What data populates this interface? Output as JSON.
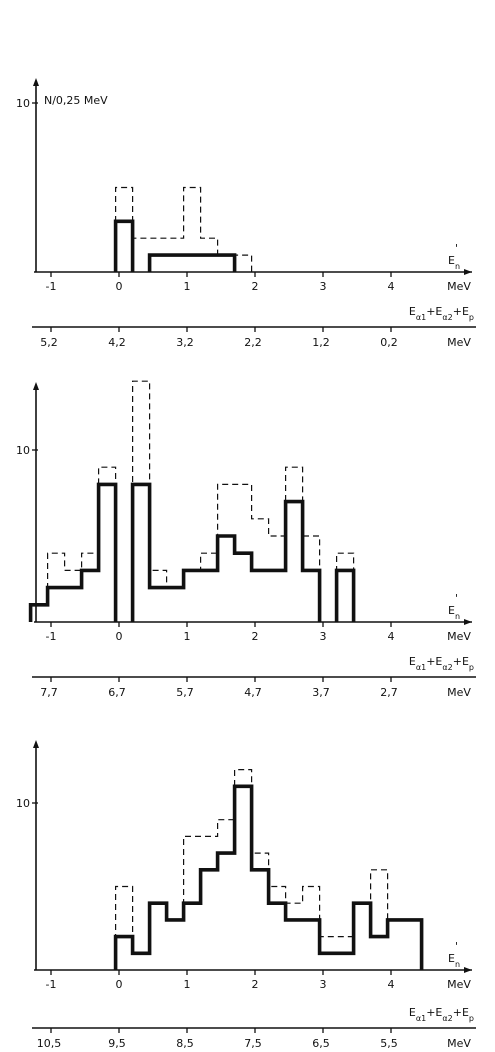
{
  "chart_data": [
    {
      "type": "histogram",
      "ylabel": "N/0,25 MeV",
      "xlabel": "E'n",
      "x_unit": "MeV",
      "xlim": [
        -1.25,
        4.75
      ],
      "ylim": [
        0,
        10
      ],
      "y_ticks": [
        10
      ],
      "x_ticks": [
        -1,
        0,
        1,
        2,
        3,
        4
      ],
      "secondary_axis": {
        "label": "Eα1+Eα2+Ep",
        "unit": "MeV",
        "ticks": [
          "5,2",
          "4,2",
          "3,2",
          "2,2",
          "1,2",
          "0,2"
        ]
      },
      "series": [
        {
          "style": "solid",
          "bins": [
            [
              -0.05,
              0.2,
              3
            ],
            [
              0.45,
              1.7,
              1
            ]
          ]
        },
        {
          "style": "dashed",
          "bins": [
            [
              -0.05,
              0.2,
              5
            ],
            [
              0.2,
              0.95,
              2
            ],
            [
              0.95,
              1.2,
              5
            ],
            [
              1.2,
              1.45,
              2
            ],
            [
              1.45,
              1.7,
              1
            ],
            [
              1.7,
              1.95,
              1
            ]
          ]
        }
      ]
    },
    {
      "type": "histogram",
      "ylabel": "",
      "xlabel": "E'n",
      "x_unit": "MeV",
      "xlim": [
        -1.25,
        4.75
      ],
      "ylim": [
        0,
        10
      ],
      "y_ticks": [
        10
      ],
      "x_ticks": [
        -1,
        0,
        1,
        2,
        3,
        4
      ],
      "secondary_axis": {
        "label": "Eα1+Eα2+Ep",
        "unit": "MeV",
        "ticks": [
          "7,7",
          "6,7",
          "5,7",
          "4,7",
          "3,7",
          "2,7"
        ]
      },
      "series": [
        {
          "style": "solid",
          "bins": [
            [
              -1.3,
              -1.05,
              1
            ],
            [
              -1.05,
              -0.55,
              2
            ],
            [
              -0.55,
              -0.3,
              3
            ],
            [
              -0.3,
              -0.05,
              8
            ],
            [
              0.2,
              0.45,
              8
            ],
            [
              0.45,
              0.95,
              2
            ],
            [
              0.95,
              1.45,
              3
            ],
            [
              1.45,
              1.7,
              5
            ],
            [
              1.7,
              1.95,
              4
            ],
            [
              1.95,
              2.45,
              3
            ],
            [
              2.45,
              2.7,
              7
            ],
            [
              2.7,
              2.95,
              3
            ],
            [
              3.2,
              3.45,
              3
            ]
          ]
        },
        {
          "style": "dashed",
          "bins": [
            [
              -1.3,
              -1.05,
              1
            ],
            [
              -1.05,
              -0.8,
              4
            ],
            [
              -0.8,
              -0.55,
              3
            ],
            [
              -0.55,
              -0.3,
              4
            ],
            [
              -0.3,
              -0.05,
              9
            ],
            [
              0.2,
              0.45,
              14
            ],
            [
              0.45,
              0.7,
              3
            ],
            [
              0.7,
              0.95,
              2
            ],
            [
              0.95,
              1.2,
              3
            ],
            [
              1.2,
              1.45,
              4
            ],
            [
              1.45,
              1.95,
              8
            ],
            [
              1.95,
              2.2,
              6
            ],
            [
              2.2,
              2.45,
              5
            ],
            [
              2.45,
              2.7,
              9
            ],
            [
              2.7,
              2.95,
              5
            ],
            [
              3.2,
              3.45,
              4
            ]
          ]
        }
      ]
    },
    {
      "type": "histogram",
      "ylabel": "",
      "xlabel": "E'n",
      "x_unit": "MeV",
      "xlim": [
        -1.25,
        4.75
      ],
      "ylim": [
        0,
        10
      ],
      "y_ticks": [
        10
      ],
      "x_ticks": [
        -1,
        0,
        1,
        2,
        3,
        4
      ],
      "secondary_axis": {
        "label": "Eα1+Eα2+Ep",
        "unit": "MeV",
        "ticks": [
          "10,5",
          "9,5",
          "8,5",
          "7,5",
          "6,5",
          "5,5"
        ]
      },
      "series": [
        {
          "style": "solid",
          "bins": [
            [
              -0.05,
              0.2,
              2
            ],
            [
              0.2,
              0.45,
              1
            ],
            [
              0.45,
              0.7,
              4
            ],
            [
              0.7,
              0.95,
              3
            ],
            [
              0.95,
              1.2,
              4
            ],
            [
              1.2,
              1.45,
              6
            ],
            [
              1.45,
              1.7,
              7
            ],
            [
              1.7,
              1.95,
              11
            ],
            [
              1.95,
              2.2,
              6
            ],
            [
              2.2,
              2.45,
              4
            ],
            [
              2.45,
              2.7,
              3
            ],
            [
              2.7,
              2.95,
              3
            ],
            [
              2.95,
              3.45,
              1
            ],
            [
              3.45,
              3.7,
              4
            ],
            [
              3.7,
              3.95,
              2
            ],
            [
              3.95,
              4.2,
              3
            ],
            [
              4.2,
              4.45,
              3
            ]
          ]
        },
        {
          "style": "dashed",
          "bins": [
            [
              -0.05,
              0.2,
              5
            ],
            [
              0.2,
              0.45,
              1
            ],
            [
              0.45,
              0.7,
              4
            ],
            [
              0.7,
              0.95,
              3
            ],
            [
              0.95,
              1.2,
              8
            ],
            [
              1.2,
              1.45,
              8
            ],
            [
              1.45,
              1.7,
              9
            ],
            [
              1.7,
              1.95,
              12
            ],
            [
              1.95,
              2.2,
              7
            ],
            [
              2.2,
              2.45,
              5
            ],
            [
              2.45,
              2.7,
              4
            ],
            [
              2.7,
              2.95,
              5
            ],
            [
              2.95,
              3.45,
              2
            ],
            [
              3.45,
              3.7,
              4
            ],
            [
              3.7,
              3.95,
              6
            ],
            [
              3.95,
              4.2,
              3
            ],
            [
              4.2,
              4.45,
              3
            ]
          ]
        }
      ]
    }
  ]
}
